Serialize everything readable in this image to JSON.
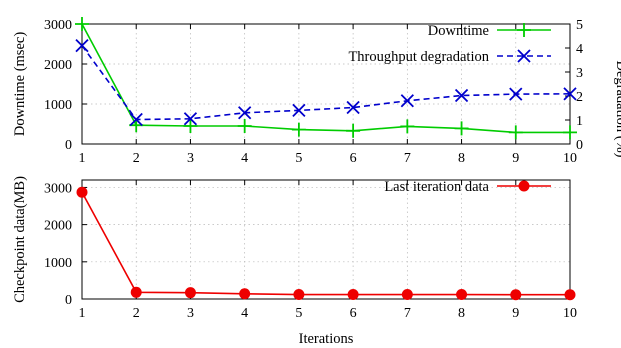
{
  "chart_data": [
    {
      "type": "line",
      "x": [
        1,
        2,
        3,
        4,
        5,
        6,
        7,
        8,
        9,
        10
      ],
      "xlim": [
        1,
        10
      ],
      "xticks": [
        "1",
        "2",
        "3",
        "4",
        "5",
        "6",
        "7",
        "8",
        "9",
        "10"
      ],
      "xlabel": "",
      "ylabel": "Downtime (msec)",
      "ylim": [
        0,
        3000
      ],
      "yticks": [
        "0",
        "1000",
        "2000",
        "3000"
      ],
      "y2label": "Degradation (%)",
      "y2lim": [
        0,
        5
      ],
      "y2ticks": [
        "0",
        "1",
        "2",
        "3",
        "4",
        "5"
      ],
      "grid": "dotted",
      "legend": "top-right",
      "series": [
        {
          "name": "Downtime",
          "axis": "left",
          "color": "#00cc00",
          "marker": "plus",
          "line": "solid",
          "values": [
            3000,
            470,
            450,
            450,
            360,
            330,
            440,
            390,
            290,
            290
          ]
        },
        {
          "name": "Throughput degradation",
          "axis": "right",
          "color": "#0000cc",
          "marker": "x",
          "line": "dashed",
          "values": [
            4.1,
            1.02,
            1.05,
            1.3,
            1.4,
            1.52,
            1.8,
            2.02,
            2.08,
            2.09
          ]
        }
      ]
    },
    {
      "type": "line",
      "x": [
        1,
        2,
        3,
        4,
        5,
        6,
        7,
        8,
        9,
        10
      ],
      "xlim": [
        1,
        10
      ],
      "xticks": [
        "1",
        "2",
        "3",
        "4",
        "5",
        "6",
        "7",
        "8",
        "9",
        "10"
      ],
      "xlabel": "Iterations",
      "ylabel": "Checkpoint data(MB)",
      "ylim": [
        0,
        3200
      ],
      "yticks": [
        "0",
        "1000",
        "2000",
        "3000"
      ],
      "grid": "dotted",
      "legend": "top-right",
      "series": [
        {
          "name": "Last iteration data",
          "axis": "left",
          "color": "#ee0000",
          "marker": "circle",
          "line": "solid",
          "values": [
            2870,
            180,
            170,
            140,
            120,
            120,
            120,
            120,
            115,
            115
          ]
        }
      ]
    }
  ]
}
